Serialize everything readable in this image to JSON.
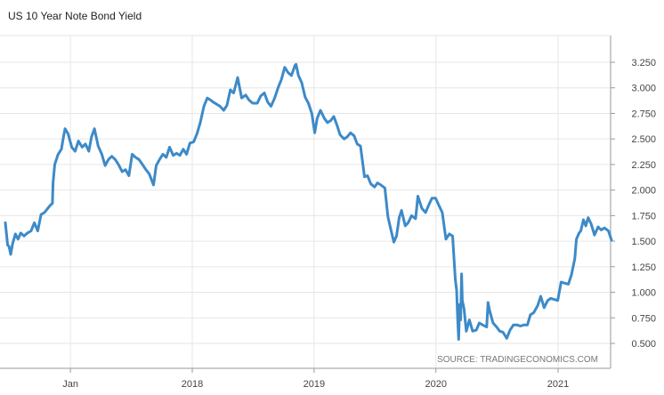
{
  "chart_data": {
    "type": "line",
    "title": "US 10 Year Note Bond Yield",
    "source": "SOURCE: TRADINGECONOMICS.COM",
    "xlabel": "",
    "ylabel": "",
    "ylim": [
      0.25,
      3.5
    ],
    "grid": true,
    "line_color": "#3d8ac8",
    "y_ticks": [
      "3.250",
      "3.000",
      "2.750",
      "2.500",
      "2.250",
      "2.000",
      "1.750",
      "1.500",
      "1.250",
      "1.000",
      "0.750",
      "0.500"
    ],
    "x_ticks": [
      "Jan",
      "2018",
      "2019",
      "2020",
      "2021"
    ],
    "series": [
      {
        "x": [
          "2016-06-20",
          "2016-06-27",
          "2016-07-01",
          "2016-07-06",
          "2016-07-12",
          "2016-07-20",
          "2016-07-28",
          "2016-08-05",
          "2016-08-15",
          "2016-08-25",
          "2016-09-05",
          "2016-09-15",
          "2016-09-25",
          "2016-10-05",
          "2016-10-15",
          "2016-10-25",
          "2016-11-01",
          "2016-11-08",
          "2016-11-10",
          "2016-11-15",
          "2016-11-25",
          "2016-12-05",
          "2016-12-10",
          "2016-12-16",
          "2016-12-25",
          "2017-01-05",
          "2017-01-15",
          "2017-01-25",
          "2017-02-05",
          "2017-02-15",
          "2017-02-25",
          "2017-03-05",
          "2017-03-14",
          "2017-03-25",
          "2017-04-05",
          "2017-04-15",
          "2017-04-25",
          "2017-05-05",
          "2017-05-15",
          "2017-05-25",
          "2017-06-05",
          "2017-06-15",
          "2017-06-25",
          "2017-07-05",
          "2017-07-15",
          "2017-07-25",
          "2017-08-05",
          "2017-08-15",
          "2017-08-25",
          "2017-09-07",
          "2017-09-15",
          "2017-09-25",
          "2017-10-05",
          "2017-10-15",
          "2017-10-25",
          "2017-11-05",
          "2017-11-15",
          "2017-11-25",
          "2017-12-05",
          "2017-12-15",
          "2017-12-25",
          "2018-01-05",
          "2018-01-15",
          "2018-01-25",
          "2018-02-05",
          "2018-02-15",
          "2018-02-25",
          "2018-03-05",
          "2018-03-15",
          "2018-03-25",
          "2018-04-05",
          "2018-04-15",
          "2018-04-25",
          "2018-05-05",
          "2018-05-17",
          "2018-05-29",
          "2018-06-10",
          "2018-06-20",
          "2018-07-01",
          "2018-07-15",
          "2018-07-25",
          "2018-08-05",
          "2018-08-15",
          "2018-08-25",
          "2018-09-05",
          "2018-09-15",
          "2018-09-25",
          "2018-10-05",
          "2018-10-15",
          "2018-10-25",
          "2018-11-05",
          "2018-11-08",
          "2018-11-15",
          "2018-11-25",
          "2018-12-05",
          "2018-12-15",
          "2018-12-25",
          "2019-01-03",
          "2019-01-10",
          "2019-01-20",
          "2019-02-01",
          "2019-02-10",
          "2019-02-20",
          "2019-03-01",
          "2019-03-10",
          "2019-03-20",
          "2019-04-01",
          "2019-04-10",
          "2019-04-20",
          "2019-05-01",
          "2019-05-10",
          "2019-05-20",
          "2019-06-01",
          "2019-06-10",
          "2019-06-20",
          "2019-07-01",
          "2019-07-10",
          "2019-07-20",
          "2019-08-01",
          "2019-08-10",
          "2019-08-20",
          "2019-08-28",
          "2019-09-05",
          "2019-09-13",
          "2019-09-20",
          "2019-10-01",
          "2019-10-10",
          "2019-10-20",
          "2019-11-01",
          "2019-11-08",
          "2019-11-20",
          "2019-12-01",
          "2019-12-10",
          "2019-12-20",
          "2019-12-31",
          "2020-01-10",
          "2020-01-20",
          "2020-01-31",
          "2020-02-10",
          "2020-02-20",
          "2020-02-28",
          "2020-03-03",
          "2020-03-06",
          "2020-03-09",
          "2020-03-12",
          "2020-03-15",
          "2020-03-18",
          "2020-03-20",
          "2020-03-25",
          "2020-04-01",
          "2020-04-10",
          "2020-04-20",
          "2020-05-01",
          "2020-05-10",
          "2020-05-20",
          "2020-06-01",
          "2020-06-05",
          "2020-06-10",
          "2020-06-20",
          "2020-07-01",
          "2020-07-10",
          "2020-07-20",
          "2020-07-31",
          "2020-08-10",
          "2020-08-20",
          "2020-09-01",
          "2020-09-10",
          "2020-09-20",
          "2020-10-01",
          "2020-10-10",
          "2020-10-20",
          "2020-11-01",
          "2020-11-10",
          "2020-11-20",
          "2020-12-01",
          "2020-12-10",
          "2020-12-20",
          "2020-12-31",
          "2021-01-10",
          "2021-01-20",
          "2021-02-01",
          "2021-02-10",
          "2021-02-20",
          "2021-02-25",
          "2021-03-05",
          "2021-03-10",
          "2021-03-18",
          "2021-03-25",
          "2021-04-01",
          "2021-04-10",
          "2021-04-20",
          "2021-05-01",
          "2021-05-10",
          "2021-05-20",
          "2021-06-01",
          "2021-06-10"
        ],
        "values": [
          1.68,
          1.46,
          1.45,
          1.37,
          1.48,
          1.57,
          1.52,
          1.58,
          1.55,
          1.58,
          1.6,
          1.68,
          1.6,
          1.76,
          1.78,
          1.82,
          1.85,
          1.87,
          2.07,
          2.25,
          2.35,
          2.4,
          2.5,
          2.6,
          2.55,
          2.42,
          2.38,
          2.48,
          2.42,
          2.45,
          2.38,
          2.52,
          2.6,
          2.43,
          2.35,
          2.24,
          2.3,
          2.33,
          2.3,
          2.25,
          2.18,
          2.2,
          2.14,
          2.35,
          2.32,
          2.3,
          2.25,
          2.2,
          2.16,
          2.05,
          2.24,
          2.3,
          2.35,
          2.32,
          2.42,
          2.34,
          2.36,
          2.34,
          2.4,
          2.35,
          2.46,
          2.47,
          2.55,
          2.66,
          2.82,
          2.9,
          2.88,
          2.86,
          2.84,
          2.82,
          2.78,
          2.83,
          2.98,
          2.95,
          3.1,
          2.9,
          2.93,
          2.88,
          2.85,
          2.85,
          2.92,
          2.95,
          2.86,
          2.82,
          2.9,
          3.0,
          3.08,
          3.2,
          3.15,
          3.12,
          3.22,
          3.23,
          3.12,
          3.05,
          2.91,
          2.85,
          2.75,
          2.56,
          2.7,
          2.78,
          2.7,
          2.66,
          2.68,
          2.72,
          2.64,
          2.54,
          2.5,
          2.52,
          2.56,
          2.53,
          2.45,
          2.43,
          2.13,
          2.14,
          2.06,
          2.03,
          2.07,
          2.05,
          2.02,
          1.74,
          1.6,
          1.49,
          1.55,
          1.73,
          1.8,
          1.65,
          1.68,
          1.75,
          1.72,
          1.94,
          1.82,
          1.78,
          1.85,
          1.92,
          1.92,
          1.85,
          1.78,
          1.52,
          1.57,
          1.55,
          1.13,
          1.02,
          0.76,
          0.54,
          0.88,
          0.73,
          1.18,
          0.92,
          0.84,
          0.62,
          0.73,
          0.62,
          0.63,
          0.7,
          0.68,
          0.66,
          0.9,
          0.82,
          0.7,
          0.66,
          0.62,
          0.61,
          0.55,
          0.63,
          0.68,
          0.68,
          0.67,
          0.68,
          0.68,
          0.78,
          0.8,
          0.87,
          0.96,
          0.85,
          0.92,
          0.94,
          0.93,
          0.92,
          1.1,
          1.09,
          1.08,
          1.17,
          1.33,
          1.52,
          1.58,
          1.6,
          1.71,
          1.65,
          1.73,
          1.67,
          1.56,
          1.64,
          1.61,
          1.63,
          1.6,
          1.51
        ]
      }
    ]
  }
}
